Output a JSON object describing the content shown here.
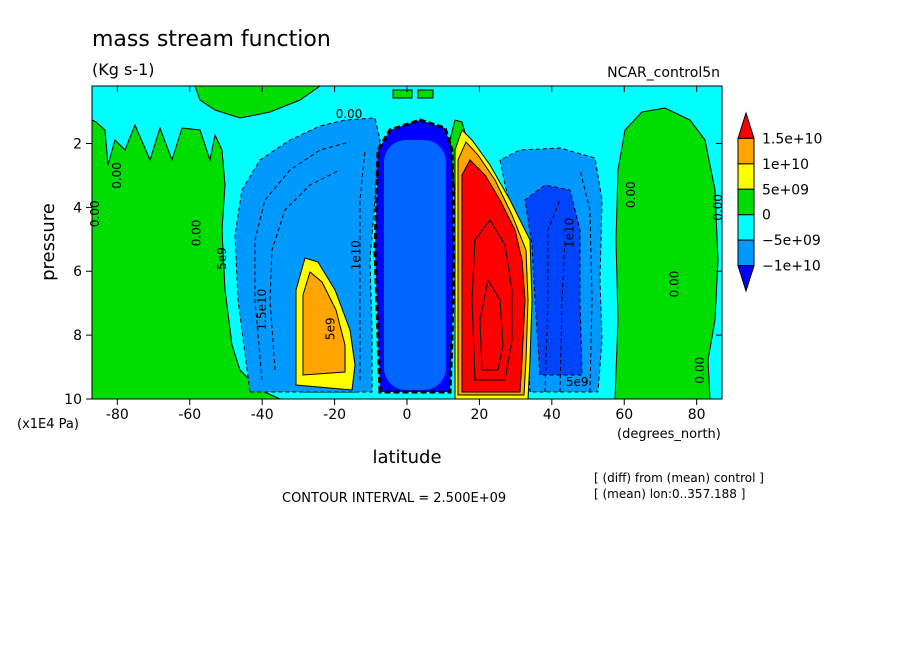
{
  "chart_data": {
    "type": "contour",
    "title": "mass stream function",
    "subtitle": "(Kg s-1)",
    "dataset_label": "NCAR_control5n",
    "xlabel": "latitude",
    "x_units": "(degrees_north)",
    "ylabel": "pressure",
    "y_units": "(x1E4 Pa)",
    "xlim": [
      -87,
      87
    ],
    "ylim": [
      10,
      0.2
    ],
    "x_ticks": [
      "-80",
      "-60",
      "-40",
      "-20",
      "0",
      "20",
      "40",
      "60",
      "80"
    ],
    "x_tick_values": [
      -80,
      -60,
      -40,
      -20,
      0,
      20,
      40,
      60,
      80
    ],
    "y_ticks": [
      "2",
      "4",
      "6",
      "8",
      "10"
    ],
    "y_tick_values": [
      2,
      4,
      6,
      8,
      10
    ],
    "contour_interval_text": "CONTOUR INTERVAL = 2.500E+09",
    "notes": [
      "[ (diff) from (mean) control ]",
      "[ (mean) lon:0..357.188 ]"
    ],
    "legend": {
      "placement": "right",
      "levels": [
        "1.5e+10",
        "1e+10",
        "5e+09",
        "0",
        "−5e+09",
        "−1e+10"
      ],
      "colors": [
        "#ff0000",
        "#ffa500",
        "#ffff00",
        "#00dd00",
        "#00ffff",
        "#0099ff",
        "#0000ff"
      ]
    },
    "contour_labels": [
      {
        "text": "0.00",
        "lat": -79,
        "p": 3.0,
        "rot": -90
      },
      {
        "text": "0.00",
        "lat": -85,
        "p": 4.2,
        "rot": -90
      },
      {
        "text": "0.00",
        "lat": -57,
        "p": 4.8,
        "rot": -90
      },
      {
        "text": "5e9",
        "lat": -50,
        "p": 5.6,
        "rot": -90
      },
      {
        "text": "1.5e10",
        "lat": -39,
        "p": 7.2,
        "rot": -90
      },
      {
        "text": "0.00",
        "lat": -16,
        "p": 1.2,
        "rot": 0
      },
      {
        "text": "5e9",
        "lat": -20,
        "p": 7.8,
        "rot": -90
      },
      {
        "text": "1e10",
        "lat": -13,
        "p": 5.5,
        "rot": -90
      },
      {
        "text": "0.00",
        "lat": 63,
        "p": 3.6,
        "rot": -90
      },
      {
        "text": "0.00",
        "lat": 87,
        "p": 4.0,
        "rot": -90
      },
      {
        "text": "0.00",
        "lat": 75,
        "p": 6.4,
        "rot": -90
      },
      {
        "text": "0.00",
        "lat": 82,
        "p": 9.1,
        "rot": -90
      },
      {
        "text": "1e10",
        "lat": 46,
        "p": 4.8,
        "rot": -90
      },
      {
        "text": "5e9",
        "lat": 47,
        "p": 9.6,
        "rot": 0
      }
    ]
  }
}
